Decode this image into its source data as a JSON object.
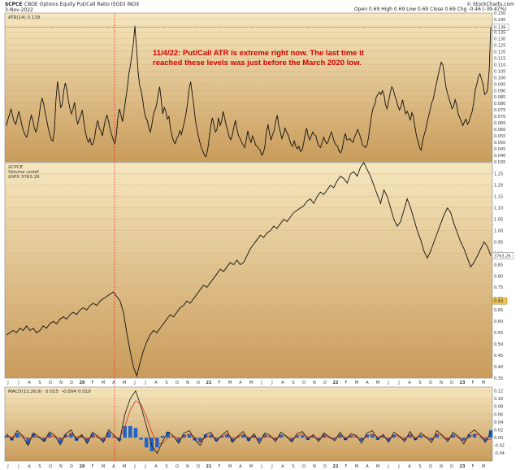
{
  "header": {
    "symbol": "$CPCE",
    "description": "CBOE Options Equity Put/Call Ratio (EOD) INDX",
    "date": "3-Nov-2022",
    "ohlc": "Open 0.69  High 0.69  Low 0.69  Close 0.69  Chg -0.46 (-39.47%)",
    "brand": "© StockCharts.com"
  },
  "colors": {
    "panel_bg_top": "#f6e7bf",
    "panel_bg_bottom": "#c99b5a",
    "line": "#111111",
    "red": "#ff0000",
    "macd_blue": "#1f64c8",
    "macd_red": "#d8301f",
    "annotation": "#d40000",
    "marker_box": "#f0c64f"
  },
  "annotation": {
    "line1": "11/4/22:  Put/Call ATR is extreme right now.  The last time it",
    "line2": "reached these levels was just before the March 2020 low."
  },
  "x_axis": {
    "labels": [
      "J",
      "J",
      "A",
      "S",
      "O",
      "N",
      "D",
      "20",
      "F",
      "M",
      "A",
      "M",
      "J",
      "J",
      "A",
      "S",
      "O",
      "N",
      "D",
      "21",
      "F",
      "M",
      "A",
      "M",
      "J",
      "J",
      "A",
      "S",
      "O",
      "N",
      "D",
      "22",
      "F",
      "M",
      "A",
      "M",
      "J",
      "J",
      "A",
      "S",
      "O",
      "N",
      "D",
      "23",
      "F",
      "M"
    ]
  },
  "chart_data": [
    {
      "type": "line",
      "name": "atr-panel",
      "legend": "ATR(14) 0.139",
      "ylim": [
        0.035,
        0.15
      ],
      "y_ticks": [
        "0.150",
        "0.145",
        "0.140",
        "0.135",
        "0.130",
        "0.125",
        "0.120",
        "0.115",
        "0.110",
        "0.105",
        "0.100",
        "0.095",
        "0.090",
        "0.085",
        "0.080",
        "0.075",
        "0.070",
        "0.065",
        "0.060",
        "0.055",
        "0.050",
        "0.045",
        "0.040",
        "0.035"
      ],
      "last_value_label": "0.139",
      "series": [
        {
          "name": "ATR(14)",
          "values": [
            0.063,
            0.068,
            0.072,
            0.076,
            0.07,
            0.066,
            0.064,
            0.069,
            0.074,
            0.069,
            0.063,
            0.059,
            0.056,
            0.054,
            0.058,
            0.066,
            0.071,
            0.067,
            0.061,
            0.058,
            0.062,
            0.07,
            0.079,
            0.084,
            0.08,
            0.073,
            0.067,
            0.061,
            0.056,
            0.052,
            0.051,
            0.06,
            0.083,
            0.097,
            0.088,
            0.077,
            0.079,
            0.09,
            0.096,
            0.091,
            0.082,
            0.076,
            0.072,
            0.076,
            0.081,
            0.07,
            0.064,
            0.068,
            0.071,
            0.075,
            0.066,
            0.058,
            0.053,
            0.05,
            0.053,
            0.048,
            0.049,
            0.054,
            0.062,
            0.067,
            0.061,
            0.059,
            0.055,
            0.062,
            0.068,
            0.071,
            0.066,
            0.06,
            0.056,
            0.052,
            0.049,
            0.056,
            0.069,
            0.076,
            0.071,
            0.066,
            0.074,
            0.083,
            0.091,
            0.102,
            0.109,
            0.117,
            0.126,
            0.14,
            0.124,
            0.105,
            0.094,
            0.09,
            0.083,
            0.074,
            0.069,
            0.067,
            0.061,
            0.058,
            0.064,
            0.072,
            0.075,
            0.079,
            0.087,
            0.093,
            0.083,
            0.072,
            0.077,
            0.074,
            0.068,
            0.07,
            0.061,
            0.055,
            0.051,
            0.049,
            0.053,
            0.055,
            0.059,
            0.056,
            0.061,
            0.066,
            0.072,
            0.08,
            0.091,
            0.097,
            0.088,
            0.079,
            0.068,
            0.061,
            0.055,
            0.05,
            0.046,
            0.043,
            0.04,
            0.039,
            0.044,
            0.053,
            0.062,
            0.069,
            0.064,
            0.058,
            0.06,
            0.069,
            0.063,
            0.066,
            0.074,
            0.069,
            0.063,
            0.059,
            0.054,
            0.052,
            0.056,
            0.062,
            0.067,
            0.06,
            0.055,
            0.053,
            0.05,
            0.048,
            0.046,
            0.052,
            0.059,
            0.053,
            0.05,
            0.055,
            0.052,
            0.048,
            0.047,
            0.045,
            0.044,
            0.04,
            0.042,
            0.047,
            0.058,
            0.064,
            0.057,
            0.052,
            0.056,
            0.059,
            0.066,
            0.071,
            0.063,
            0.058,
            0.053,
            0.056,
            0.061,
            0.058,
            0.056,
            0.052,
            0.048,
            0.047,
            0.051,
            0.047,
            0.045,
            0.047,
            0.043,
            0.044,
            0.049,
            0.056,
            0.061,
            0.055,
            0.052,
            0.055,
            0.058,
            0.056,
            0.055,
            0.05,
            0.047,
            0.046,
            0.05,
            0.054,
            0.051,
            0.049,
            0.051,
            0.055,
            0.058,
            0.054,
            0.05,
            0.048,
            0.047,
            0.043,
            0.042,
            0.045,
            0.052,
            0.057,
            0.052,
            0.052,
            0.053,
            0.051,
            0.05,
            0.054,
            0.057,
            0.06,
            0.057,
            0.053,
            0.048,
            0.047,
            0.046,
            0.048,
            0.054,
            0.063,
            0.071,
            0.077,
            0.079,
            0.085,
            0.087,
            0.089,
            0.087,
            0.09,
            0.087,
            0.079,
            0.076,
            0.082,
            0.088,
            0.093,
            0.091,
            0.086,
            0.083,
            0.078,
            0.075,
            0.078,
            0.083,
            0.077,
            0.072,
            0.074,
            0.071,
            0.067,
            0.073,
            0.07,
            0.062,
            0.055,
            0.051,
            0.046,
            0.044,
            0.051,
            0.056,
            0.06,
            0.066,
            0.071,
            0.076,
            0.081,
            0.084,
            0.091,
            0.096,
            0.102,
            0.107,
            0.112,
            0.11,
            0.102,
            0.093,
            0.088,
            0.084,
            0.08,
            0.076,
            0.078,
            0.083,
            0.079,
            0.072,
            0.069,
            0.066,
            0.063,
            0.066,
            0.068,
            0.064,
            0.066,
            0.07,
            0.074,
            0.081,
            0.091,
            0.095,
            0.101,
            0.103,
            0.099,
            0.095,
            0.087,
            0.088,
            0.091,
            0.106,
            0.139
          ]
        }
      ]
    },
    {
      "type": "line",
      "name": "price-panel",
      "legend": [
        "$CPCE",
        "Volume undef",
        "$SPX 3763.26"
      ],
      "ylim": [
        0.35,
        1.3
      ],
      "y_ticks": [
        "1.25",
        "1.20",
        "1.15",
        "1.10",
        "1.05",
        "1.00",
        "0.95",
        "0.90",
        "0.85",
        "0.80",
        "0.75",
        "0.70",
        "0.65",
        "0.60",
        "0.55",
        "0.50",
        "0.45",
        "0.40",
        "0.35"
      ],
      "last_value_label": "3763.26",
      "marker_label": "0.69",
      "series": [
        {
          "name": "$SPX",
          "values": [
            0.54,
            0.55,
            0.56,
            0.55,
            0.57,
            0.56,
            0.58,
            0.56,
            0.57,
            0.55,
            0.56,
            0.58,
            0.57,
            0.59,
            0.6,
            0.59,
            0.61,
            0.62,
            0.61,
            0.63,
            0.64,
            0.63,
            0.65,
            0.66,
            0.65,
            0.67,
            0.68,
            0.67,
            0.69,
            0.7,
            0.71,
            0.72,
            0.73,
            0.71,
            0.69,
            0.64,
            0.55,
            0.47,
            0.4,
            0.36,
            0.42,
            0.47,
            0.51,
            0.54,
            0.56,
            0.55,
            0.57,
            0.59,
            0.61,
            0.63,
            0.62,
            0.64,
            0.66,
            0.67,
            0.69,
            0.68,
            0.7,
            0.72,
            0.74,
            0.76,
            0.75,
            0.77,
            0.79,
            0.81,
            0.83,
            0.82,
            0.84,
            0.86,
            0.85,
            0.87,
            0.85,
            0.86,
            0.89,
            0.92,
            0.94,
            0.96,
            0.98,
            0.97,
            0.99,
            1.0,
            1.02,
            1.01,
            1.03,
            1.05,
            1.04,
            1.06,
            1.08,
            1.09,
            1.1,
            1.11,
            1.13,
            1.14,
            1.12,
            1.15,
            1.17,
            1.16,
            1.18,
            1.2,
            1.19,
            1.22,
            1.24,
            1.23,
            1.21,
            1.25,
            1.26,
            1.24,
            1.28,
            1.3,
            1.27,
            1.24,
            1.2,
            1.16,
            1.12,
            1.18,
            1.15,
            1.1,
            1.05,
            1.02,
            1.04,
            1.09,
            1.14,
            1.1,
            1.05,
            1.0,
            0.96,
            0.91,
            0.88,
            0.91,
            0.95,
            0.99,
            1.03,
            1.07,
            1.1,
            1.08,
            1.03,
            0.99,
            0.95,
            0.92,
            0.88,
            0.84,
            0.86,
            0.89,
            0.92,
            0.95,
            0.93,
            0.89
          ]
        }
      ]
    },
    {
      "type": "line",
      "name": "macd-panel",
      "legend": [
        "MACD(12,26,9)",
        "0.015",
        "-0.004",
        "0.019"
      ],
      "ylim": [
        -0.06,
        0.13
      ],
      "y_ticks": [
        "0.12",
        "0.10",
        "0.08",
        "0.06",
        "0.04",
        "0.02",
        "0.00",
        "-0.02",
        "-0.04"
      ],
      "series": [
        {
          "name": "MACD",
          "values": [
            0.01,
            -0.005,
            0.018,
            0.004,
            -0.02,
            0.012,
            0.002,
            -0.01,
            0.015,
            0.005,
            -0.018,
            0.01,
            0.02,
            -0.006,
            0.008,
            -0.015,
            0.014,
            0.003,
            -0.012,
            0.02,
            0.006,
            -0.009,
            0.06,
            0.1,
            0.12,
            0.08,
            0.03,
            -0.02,
            -0.04,
            -0.01,
            0.015,
            0.005,
            -0.015,
            0.012,
            0.018,
            -0.005,
            -0.02,
            0.008,
            0.014,
            -0.01,
            0.006,
            0.018,
            -0.012,
            0.004,
            0.016,
            -0.008,
            0.01,
            -0.015,
            0.012,
            0.006,
            -0.01,
            0.014,
            0.004,
            -0.012,
            0.01,
            0.016,
            -0.004,
            0.008,
            -0.01,
            0.012,
            0.002,
            -0.008,
            0.014,
            -0.006,
            0.01,
            0.006,
            -0.014,
            0.012,
            0.018,
            -0.004,
            0.008,
            -0.012,
            0.014,
            0.004,
            -0.01,
            0.016,
            -0.006,
            0.012,
            0.002,
            -0.012,
            0.018,
            0.006,
            -0.01,
            0.014,
            0.002,
            -0.016,
            0.01,
            0.02,
            0.006,
            -0.012,
            0.015
          ]
        },
        {
          "name": "Signal",
          "values": [
            0.004,
            0.002,
            0.006,
            0.004,
            -0.004,
            0.002,
            0.002,
            -0.002,
            0.004,
            0.004,
            -0.004,
            0.002,
            0.008,
            0.002,
            0.004,
            -0.004,
            0.004,
            0.002,
            -0.004,
            0.006,
            0.004,
            -0.002,
            0.03,
            0.07,
            0.095,
            0.085,
            0.055,
            0.015,
            -0.015,
            -0.015,
            0.0,
            0.004,
            -0.004,
            0.004,
            0.01,
            0.002,
            -0.008,
            0.0,
            0.006,
            -0.002,
            0.002,
            0.01,
            -0.002,
            0.002,
            0.008,
            0.0,
            0.004,
            -0.006,
            0.004,
            0.004,
            -0.004,
            0.006,
            0.004,
            -0.004,
            0.004,
            0.01,
            0.002,
            0.004,
            -0.004,
            0.004,
            0.002,
            -0.004,
            0.006,
            0.0,
            0.004,
            0.004,
            -0.006,
            0.004,
            0.01,
            0.002,
            0.004,
            -0.004,
            0.006,
            0.004,
            -0.004,
            0.008,
            0.0,
            0.006,
            0.002,
            -0.006,
            0.008,
            0.006,
            -0.004,
            0.006,
            0.002,
            -0.008,
            0.002,
            0.01,
            0.006,
            -0.004,
            -0.004
          ]
        },
        {
          "name": "Histogram",
          "values": [
            0.006,
            -0.007,
            0.012,
            0.0,
            -0.016,
            0.01,
            0.0,
            -0.008,
            0.011,
            0.001,
            -0.014,
            0.008,
            0.012,
            -0.008,
            0.004,
            -0.011,
            0.01,
            0.001,
            -0.008,
            0.014,
            0.002,
            -0.007,
            0.03,
            0.03,
            0.025,
            -0.005,
            -0.025,
            -0.035,
            -0.025,
            0.005,
            0.015,
            0.001,
            -0.011,
            0.008,
            0.008,
            -0.007,
            -0.012,
            0.008,
            0.008,
            -0.008,
            0.004,
            0.008,
            -0.01,
            0.002,
            0.008,
            -0.008,
            0.006,
            -0.009,
            0.008,
            0.002,
            -0.006,
            0.008,
            0.0,
            -0.008,
            0.006,
            0.006,
            -0.006,
            0.004,
            -0.006,
            0.008,
            0.0,
            -0.004,
            0.008,
            -0.006,
            0.006,
            0.002,
            -0.008,
            0.008,
            0.008,
            -0.006,
            0.004,
            -0.008,
            0.008,
            0.0,
            -0.006,
            0.008,
            -0.006,
            0.006,
            0.0,
            -0.006,
            0.01,
            0.0,
            -0.006,
            0.008,
            0.0,
            -0.008,
            0.008,
            0.01,
            0.0,
            -0.008,
            0.019
          ]
        }
      ]
    }
  ]
}
